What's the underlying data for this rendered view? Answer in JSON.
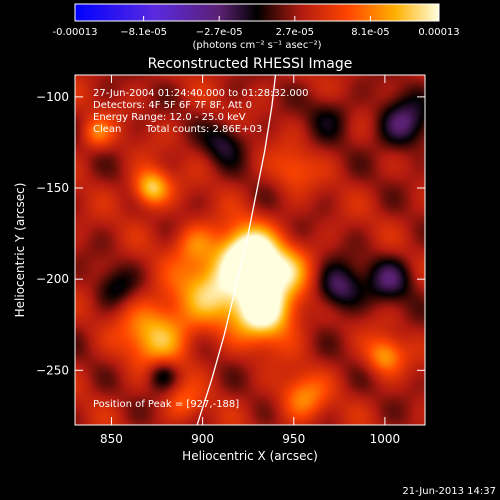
{
  "chart_data": {
    "type": "heatmap",
    "title": "Reconstructed RHESSI Image",
    "xlabel": "Heliocentric X (arcsec)",
    "ylabel": "Heliocentric Y (arcsec)",
    "xlim": [
      830,
      1022
    ],
    "ylim": [
      -280,
      -88
    ],
    "x_ticks": [
      850,
      900,
      950,
      1000
    ],
    "y_ticks": [
      -100,
      -150,
      -200,
      -250
    ],
    "colorbar": {
      "range": [
        -0.00013,
        0.00013
      ],
      "tick_values": [
        -0.00013,
        -8.1e-05,
        -2.7e-05,
        2.7e-05,
        8.1e-05,
        0.00013
      ],
      "tick_labels": [
        "-0.00013",
        "−8.1e-05",
        "−2.7e-05",
        "2.7e-05",
        "8.1e-05",
        "0.00013"
      ],
      "units_label": "(photons cm⁻² s⁻¹ asec⁻²)"
    },
    "annotations": {
      "time_range": "27-Jun-2004 01:24:40.000 to 01:28:32.000",
      "detectors": "Detectors: 4F 5F 6F 7F 8F, Att 0",
      "energy_range": "Energy Range: 12.0 - 25.0 keV",
      "algorithm": "Clean",
      "total_counts": "Total counts: 2.86E+03",
      "peak_position": "Position of Peak = [927,-188]"
    },
    "peak": {
      "x": 927,
      "y": -188
    },
    "limb_curve": [
      [
        897,
        -280
      ],
      [
        905,
        -255
      ],
      [
        912,
        -230
      ],
      [
        918,
        -205
      ],
      [
        924,
        -180
      ],
      [
        929,
        -155
      ],
      [
        934,
        -130
      ],
      [
        938,
        -105
      ],
      [
        940,
        -88
      ]
    ],
    "sources": [
      {
        "x": 925,
        "y": -187,
        "amp": 1.0,
        "sigma": 11
      },
      {
        "x": 934,
        "y": -216,
        "amp": 0.9,
        "sigma": 12
      },
      {
        "x": 905,
        "y": -205,
        "amp": 0.55,
        "sigma": 14
      },
      {
        "x": 945,
        "y": -195,
        "amp": 0.45,
        "sigma": 10
      },
      {
        "x": 872,
        "y": -150,
        "amp": 0.65,
        "sigma": 7
      },
      {
        "x": 875,
        "y": -230,
        "amp": 0.55,
        "sigma": 13
      },
      {
        "x": 1000,
        "y": -242,
        "amp": 0.45,
        "sigma": 7
      },
      {
        "x": 955,
        "y": -265,
        "amp": 0.4,
        "sigma": 9
      },
      {
        "x": 895,
        "y": -180,
        "amp": 0.3,
        "sigma": 8
      },
      {
        "x": 842,
        "y": -120,
        "amp": 0.35,
        "sigma": 6
      },
      {
        "x": 950,
        "y": -140,
        "amp": 0.25,
        "sigma": 8
      },
      {
        "x": 1010,
        "y": -115,
        "amp": -0.45,
        "sigma": 10
      },
      {
        "x": 975,
        "y": -205,
        "amp": -0.45,
        "sigma": 9
      },
      {
        "x": 1003,
        "y": -200,
        "amp": -0.35,
        "sigma": 9
      },
      {
        "x": 878,
        "y": -252,
        "amp": -0.35,
        "sigma": 6
      },
      {
        "x": 912,
        "y": -125,
        "amp": -0.3,
        "sigma": 8
      },
      {
        "x": 852,
        "y": -205,
        "amp": -0.25,
        "sigma": 8
      },
      {
        "x": 970,
        "y": -110,
        "amp": -0.2,
        "sigma": 9
      },
      {
        "x": 890,
        "y": -268,
        "amp": 0.25,
        "sigma": 7
      }
    ]
  },
  "footer": {
    "date": "21-Jun-2013 14:37"
  }
}
